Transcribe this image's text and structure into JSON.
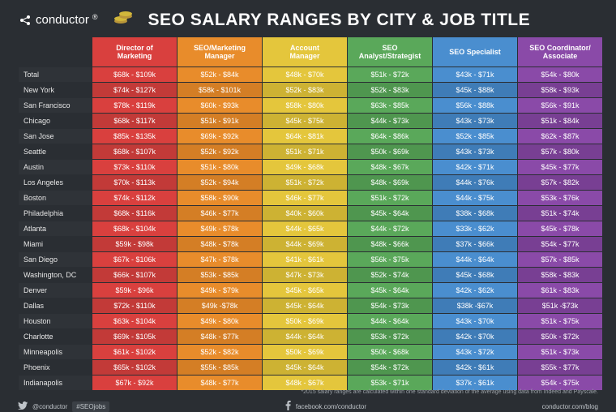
{
  "brand": "conductor",
  "title": "SEO SALARY RANGES BY CITY & JOB TITLE",
  "columns": [
    {
      "label": "Director of\nMarketing",
      "color": "#d9403e",
      "alt": "#c23a38"
    },
    {
      "label": "SEO/Marketing\nManager",
      "color": "#e88c2b",
      "alt": "#d47e25"
    },
    {
      "label": "Account\nManager",
      "color": "#e4c63c",
      "alt": "#cdb233"
    },
    {
      "label": "SEO\nAnalyst/Strategist",
      "color": "#5aa85a",
      "alt": "#4f964f"
    },
    {
      "label": "SEO Specialist",
      "color": "#4a8ecf",
      "alt": "#3f7cb7"
    },
    {
      "label": "SEO Coordinator/\nAssociate",
      "color": "#8a4aa8",
      "alt": "#783f93"
    }
  ],
  "cities": [
    "Total",
    "New York",
    "San Francisco",
    "Chicago",
    "San Jose",
    "Seattle",
    "Austin",
    "Los Angeles",
    "Boston",
    "Philadelphia",
    "Atlanta",
    "Miami",
    "San Diego",
    "Washington, DC",
    "Denver",
    "Dallas",
    "Houston",
    "Charlotte",
    "Minneapolis",
    "Phoenix",
    "Indianapolis"
  ],
  "rows": [
    [
      "$68k - $109k",
      "$52k - $84k",
      "$48k - $70k",
      "$51k - $72k",
      "$43k - $71k",
      "$54k - $80k"
    ],
    [
      "$74k - $127k",
      "$58k - $101k",
      "$52k - $83k",
      "$52k - $83k",
      "$45k - $88k",
      "$58k - $93k"
    ],
    [
      "$78k - $119k",
      "$60k - $93k",
      "$58k - $80k",
      "$63k - $85k",
      "$56k - $88k",
      "$56k - $91k"
    ],
    [
      "$68k - $117k",
      "$51k - $91k",
      "$45k - $75k",
      "$44k - $73k",
      "$43k - $73k",
      "$51k - $84k"
    ],
    [
      "$85k - $135k",
      "$69k - $92k",
      "$64k - $81k",
      "$64k - $86k",
      "$52k - $85k",
      "$62k - $87k"
    ],
    [
      "$68k - $107k",
      "$52k - $92k",
      "$51k - $71k",
      "$50k - $69k",
      "$43k - $73k",
      "$57k - $80k"
    ],
    [
      "$73k - $110k",
      "$51k - $80k",
      "$49k - $68k",
      "$48k - $67k",
      "$42k - $71k",
      "$45k - $77k"
    ],
    [
      "$70k - $113k",
      "$52k - $94k",
      "$51k - $72k",
      "$48k - $69k",
      "$44k - $76k",
      "$57k - $82k"
    ],
    [
      "$74k - $112k",
      "$58k - $90k",
      "$46k - $77k",
      "$51k - $72k",
      "$44k - $75k",
      "$53k - $76k"
    ],
    [
      "$68k - $116k",
      "$46k - $77k",
      "$40k - $60k",
      "$45k - $64k",
      "$38k - $68k",
      "$51k - $74k"
    ],
    [
      "$68k - $104k",
      "$49k - $78k",
      "$44k - $65k",
      "$44k - $72k",
      "$33k - $62k",
      "$45k - $78k"
    ],
    [
      "$59k -  $98k",
      "$48k - $78k",
      "$44k - $69k",
      "$48k - $66k",
      "$37k - $66k",
      "$54k - $77k"
    ],
    [
      "$67k - $106k",
      "$47k - $78k",
      "$41k - $61k",
      "$56k - $75k",
      "$44k - $64k",
      "$57k - $85k"
    ],
    [
      "$66k - $107k",
      "$53k - $85k",
      "$47k - $73k",
      "$52k - $74k",
      "$45k - $68k",
      "$58k - $83k"
    ],
    [
      "$59k -  $96k",
      "$49k - $79k",
      "$45k - $65k",
      "$45k - $64k",
      "$42k - $62k",
      "$61k - $83k"
    ],
    [
      "$72k - $110k",
      "$49k  -$78k",
      "$45k - $64k",
      "$54k - $73k",
      "$38k  -$67k",
      "$51k  -$73k"
    ],
    [
      "$63k - $104k",
      "$49k - $80k",
      "$50k - $69k",
      "$44k - $64k",
      "$43k - $70k",
      "$51k - $75k"
    ],
    [
      "$69k - $105k",
      "$48k - $77k",
      "$44k - $64k",
      "$53k - $72k",
      "$42k - $70k",
      "$50k - $72k"
    ],
    [
      "$61k - $102k",
      "$52k - $82k",
      "$50k - $69k",
      "$50k - $68k",
      "$43k - $72k",
      "$51k - $73k"
    ],
    [
      "$65k - $102k",
      "$55k - $85k",
      "$45k - $64k",
      "$54k - $72k",
      "$42k - $61k",
      "$55k - $77k"
    ],
    [
      "$67k -  $92k",
      "$48k - $77k",
      "$48k - $67k",
      "$53k - $71k",
      "$37k - $61k",
      "$54k - $75k"
    ]
  ],
  "city_col_width": 90,
  "data_col_width": 104,
  "table_fontsize": 9,
  "header_fontsize": 9,
  "footer": {
    "twitter": "@conductor",
    "hashtag": "#SEOjobs",
    "facebook": "facebook.com/conductor",
    "blog": "conductor.com/blog"
  },
  "footnote": "*2015 salary ranges are calculated within one standard deviation of the average using data from Indeed and Payscale."
}
